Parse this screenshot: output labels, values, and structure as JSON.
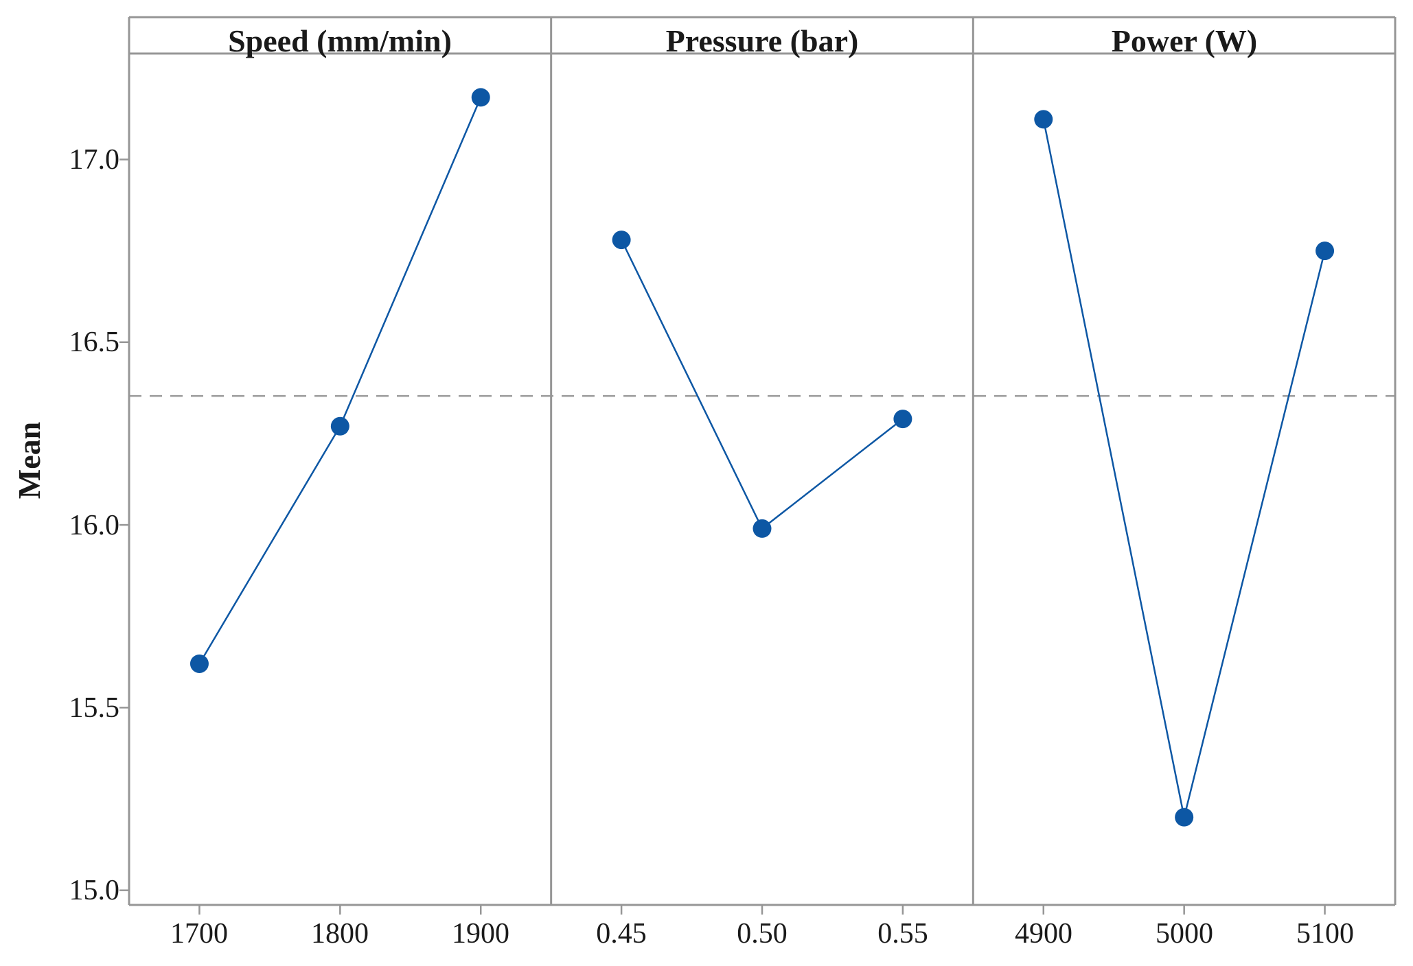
{
  "figure": {
    "kind": "main-effects-plot",
    "background": "#ffffff"
  },
  "chart_data": {
    "type": "line",
    "title": "",
    "ylabel": "Mean",
    "ylim": [
      14.96,
      17.29
    ],
    "yticks": [
      17.0,
      16.5,
      16.0,
      15.5,
      15.0
    ],
    "ytick_labels": [
      "17.0",
      "16.5",
      "16.0",
      "15.5",
      "15.0"
    ],
    "grid": false,
    "legend_position": "none",
    "reference_line": {
      "label": "overall mean",
      "value": 16.353,
      "style": "dashed",
      "color": "#9a9a9a"
    },
    "panels": [
      {
        "title": "Speed (mm/min)",
        "categories": [
          "1700",
          "1800",
          "1900"
        ],
        "values": [
          15.62,
          16.27,
          17.17
        ]
      },
      {
        "title": "Pressure (bar)",
        "categories": [
          "0.45",
          "0.50",
          "0.55"
        ],
        "values": [
          16.78,
          15.99,
          16.29
        ]
      },
      {
        "title": "Power (W)",
        "categories": [
          "4900",
          "5000",
          "5100"
        ],
        "values": [
          17.11,
          15.2,
          16.75
        ]
      }
    ],
    "colors": {
      "series": "#0d57a4",
      "marker": "#0d57a4",
      "axis": "#969696",
      "text": "#1a1a1a"
    }
  }
}
